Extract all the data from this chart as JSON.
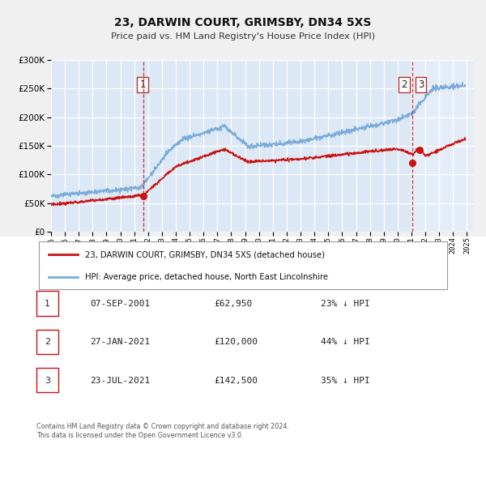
{
  "title": "23, DARWIN COURT, GRIMSBY, DN34 5XS",
  "subtitle": "Price paid vs. HM Land Registry's House Price Index (HPI)",
  "hpi_color": "#7aabdb",
  "property_color": "#cc1111",
  "background_color": "#f8f8f8",
  "plot_bg_color": "#dce8f5",
  "plot_bg_right": "#e8eef6",
  "grid_color": "#ffffff",
  "xmin": 1995.0,
  "xmax": 2025.5,
  "ymin": 0,
  "ymax": 300000,
  "yticks": [
    0,
    50000,
    100000,
    150000,
    200000,
    250000,
    300000
  ],
  "xticks": [
    1995,
    1996,
    1997,
    1998,
    1999,
    2000,
    2001,
    2002,
    2003,
    2004,
    2005,
    2006,
    2007,
    2008,
    2009,
    2010,
    2011,
    2012,
    2013,
    2014,
    2015,
    2016,
    2017,
    2018,
    2019,
    2020,
    2021,
    2022,
    2023,
    2024,
    2025
  ],
  "sale1_x": 2001.69,
  "sale1_y": 62950,
  "sale2_x": 2021.08,
  "sale2_y": 120000,
  "sale3_x": 2021.56,
  "sale3_y": 142500,
  "vline1_x": 2001.69,
  "vline2_x": 2021.08,
  "legend_property": "23, DARWIN COURT, GRIMSBY, DN34 5XS (detached house)",
  "legend_hpi": "HPI: Average price, detached house, North East Lincolnshire",
  "table_rows": [
    {
      "num": "1",
      "date": "07-SEP-2001",
      "price": "£62,950",
      "pct": "23% ↓ HPI"
    },
    {
      "num": "2",
      "date": "27-JAN-2021",
      "price": "£120,000",
      "pct": "44% ↓ HPI"
    },
    {
      "num": "3",
      "date": "23-JUL-2021",
      "price": "£142,500",
      "pct": "35% ↓ HPI"
    }
  ],
  "footer": "Contains HM Land Registry data © Crown copyright and database right 2024.\nThis data is licensed under the Open Government Licence v3.0.",
  "future_cutoff": 2021.08
}
